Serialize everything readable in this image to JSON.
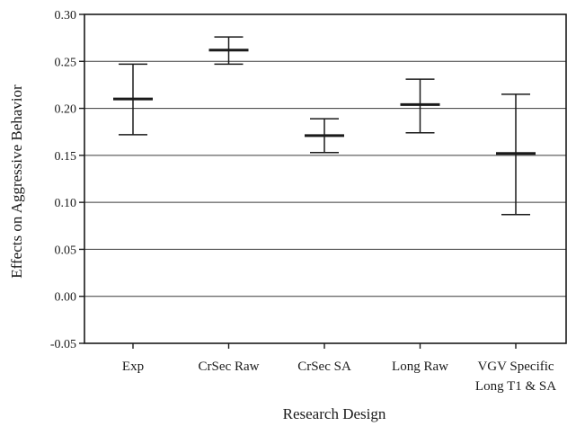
{
  "chart_data": {
    "type": "error-bar",
    "title": "",
    "xlabel": "Research Design",
    "ylabel": "Effects on Aggressive Behavior",
    "ylim": [
      -0.05,
      0.3
    ],
    "yticks": [
      "-0.05",
      "0.00",
      "0.05",
      "0.10",
      "0.15",
      "0.20",
      "0.25",
      "0.30"
    ],
    "grid": true,
    "categories": [
      [
        "Exp"
      ],
      [
        "CrSec Raw"
      ],
      [
        "CrSec SA"
      ],
      [
        "Long Raw"
      ],
      [
        "VGV Specific",
        "Long T1 & SA"
      ]
    ],
    "estimates": [
      0.21,
      0.262,
      0.171,
      0.204,
      0.152
    ],
    "lower": [
      0.172,
      0.247,
      0.153,
      0.174,
      0.087
    ],
    "upper": [
      0.247,
      0.276,
      0.189,
      0.231,
      0.215
    ]
  }
}
